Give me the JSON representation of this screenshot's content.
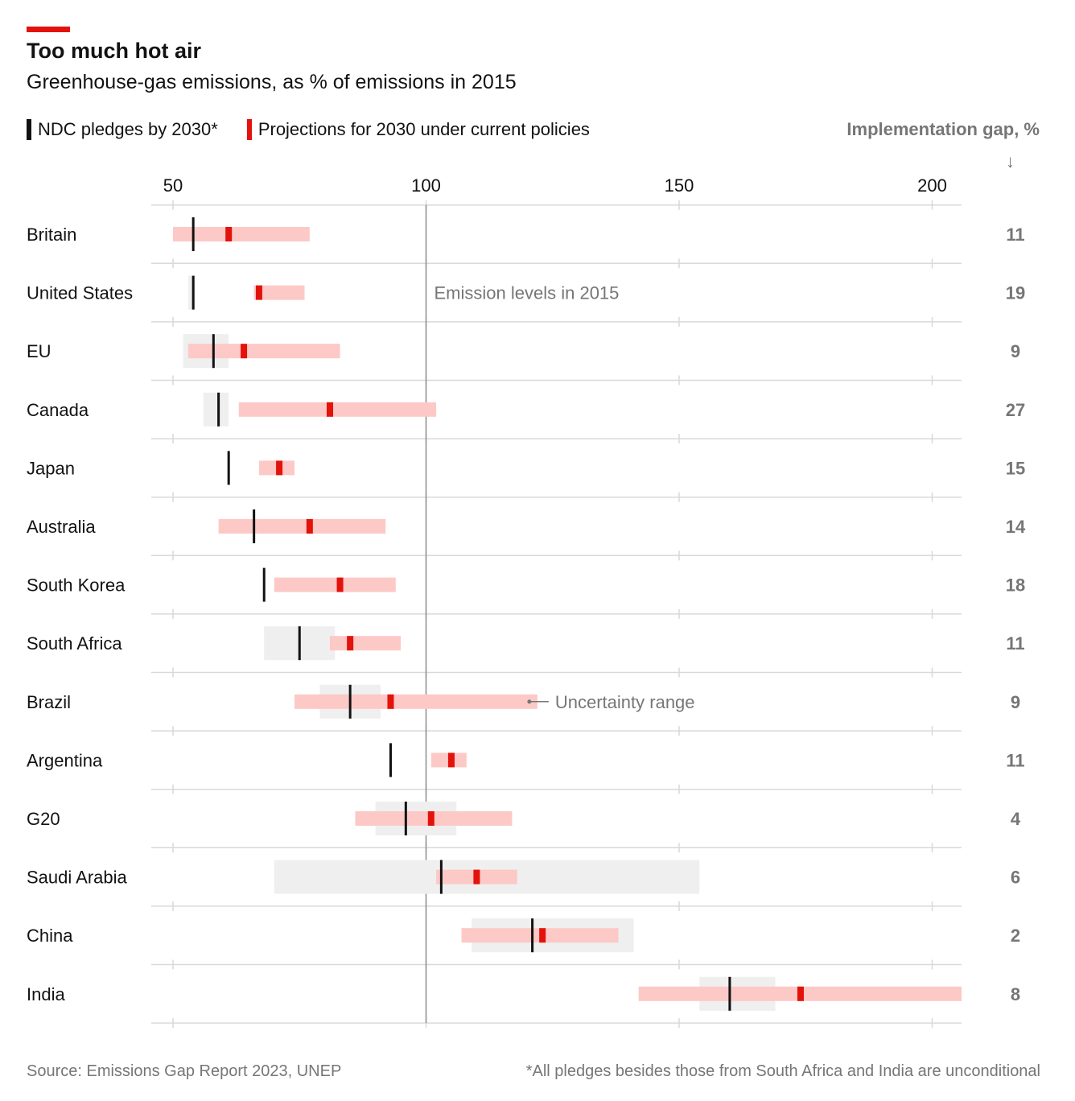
{
  "title": "Too much hot air",
  "subtitle": "Greenhouse-gas emissions, as % of emissions in 2015",
  "legend": {
    "pledge_label": "NDC pledges by 2030*",
    "projection_label": "Projections for 2030 under current policies"
  },
  "gap_header": "Implementation gap, %",
  "gap_arrow": "↓",
  "source": "Source: Emissions Gap Report 2023, UNEP",
  "footnote": "*All pledges besides those from South Africa and India are unconditional",
  "colors": {
    "pledge": "#121212",
    "projection": "#e3120b",
    "projection_range": "#fcc9c6",
    "pledge_range": "#efefef",
    "gridline": "#d9d9d9",
    "reference_line": "#8c8c8c",
    "muted_text": "#767676",
    "accent": "#e3120b"
  },
  "chart_data": {
    "type": "range-dot",
    "x_ticks": [
      50,
      100,
      150,
      200
    ],
    "xlim": [
      46,
      207
    ],
    "reference_line": {
      "x": 100,
      "label": "Emission levels in 2015"
    },
    "range_annotation": {
      "label": "Uncertainty range",
      "country": "Brazil"
    },
    "rows": [
      {
        "country": "Britain",
        "pledge": 54,
        "pledge_range": null,
        "projection": 61,
        "projection_range": [
          50,
          77
        ],
        "gap": "11"
      },
      {
        "country": "United States",
        "pledge": 54,
        "pledge_range": [
          53,
          54.5
        ],
        "projection": 67,
        "projection_range": [
          66,
          76
        ],
        "gap": "19"
      },
      {
        "country": "EU",
        "pledge": 58,
        "pledge_range": [
          52,
          61
        ],
        "projection": 64,
        "projection_range": [
          53,
          83
        ],
        "gap": "9"
      },
      {
        "country": "Canada",
        "pledge": 59,
        "pledge_range": [
          56,
          61
        ],
        "projection": 81,
        "projection_range": [
          63,
          102
        ],
        "gap": "27"
      },
      {
        "country": "Japan",
        "pledge": 61,
        "pledge_range": null,
        "projection": 71,
        "projection_range": [
          67,
          74
        ],
        "gap": "15"
      },
      {
        "country": "Australia",
        "pledge": 66,
        "pledge_range": null,
        "projection": 77,
        "projection_range": [
          59,
          92
        ],
        "gap": "14"
      },
      {
        "country": "South Korea",
        "pledge": 68,
        "pledge_range": null,
        "projection": 83,
        "projection_range": [
          70,
          94
        ],
        "gap": "18"
      },
      {
        "country": "South Africa",
        "pledge": 75,
        "pledge_range": [
          68,
          82
        ],
        "projection": 85,
        "projection_range": [
          81,
          95
        ],
        "gap": "11"
      },
      {
        "country": "Brazil",
        "pledge": 85,
        "pledge_range": [
          79,
          91
        ],
        "projection": 93,
        "projection_range": [
          74,
          122
        ],
        "gap": "9"
      },
      {
        "country": "Argentina",
        "pledge": 93,
        "pledge_range": null,
        "projection": 105,
        "projection_range": [
          101,
          108
        ],
        "gap": "11"
      },
      {
        "country": "G20",
        "pledge": 96,
        "pledge_range": [
          90,
          106
        ],
        "projection": 101,
        "projection_range": [
          86,
          117
        ],
        "gap": "4"
      },
      {
        "country": "Saudi Arabia",
        "pledge": 103,
        "pledge_range": [
          70,
          154
        ],
        "projection": 110,
        "projection_range": [
          102,
          118
        ],
        "gap": "6"
      },
      {
        "country": "China",
        "pledge": 121,
        "pledge_range": [
          109,
          141
        ],
        "projection": 123,
        "projection_range": [
          107,
          138
        ],
        "gap": "2"
      },
      {
        "country": "India",
        "pledge": 160,
        "pledge_range": [
          154,
          169
        ],
        "projection": 174,
        "projection_range": [
          142,
          207
        ],
        "gap": "8"
      }
    ]
  }
}
